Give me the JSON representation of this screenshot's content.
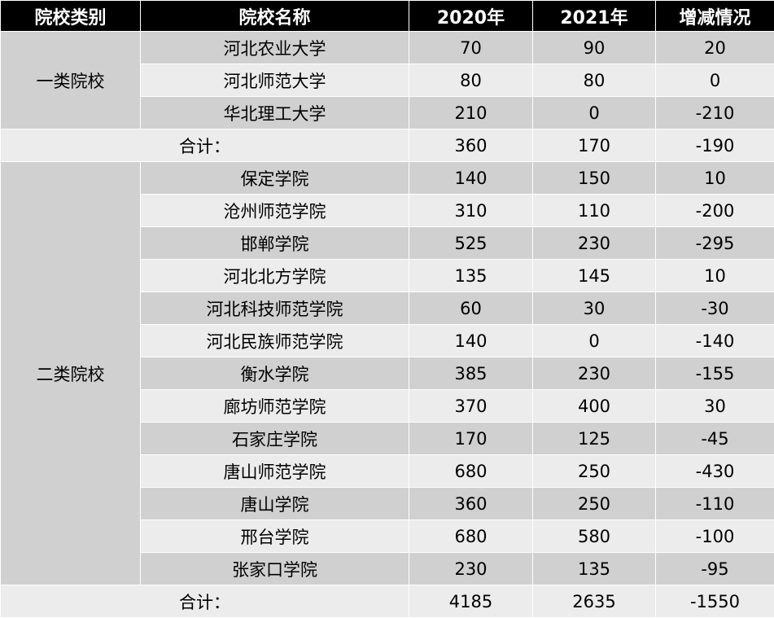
{
  "header": {
    "category": "院校类别",
    "name": "院校名称",
    "y2020": "2020年",
    "y2021": "2021年",
    "diff": "增减情况"
  },
  "groups": [
    {
      "category": "一类院校",
      "rows": [
        {
          "name": "河北农业大学",
          "y2020": "70",
          "y2021": "90",
          "diff": "20"
        },
        {
          "name": "河北师范大学",
          "y2020": "80",
          "y2021": "80",
          "diff": "0"
        },
        {
          "name": "华北理工大学",
          "y2020": "210",
          "y2021": "0",
          "diff": "-210"
        }
      ],
      "total": {
        "label": "合计：",
        "y2020": "360",
        "y2021": "170",
        "diff": "-190"
      }
    },
    {
      "category": "二类院校",
      "rows": [
        {
          "name": "保定学院",
          "y2020": "140",
          "y2021": "150",
          "diff": "10"
        },
        {
          "name": "沧州师范学院",
          "y2020": "310",
          "y2021": "110",
          "diff": "-200"
        },
        {
          "name": "邯郸学院",
          "y2020": "525",
          "y2021": "230",
          "diff": "-295"
        },
        {
          "name": "河北北方学院",
          "y2020": "135",
          "y2021": "145",
          "diff": "10"
        },
        {
          "name": "河北科技师范学院",
          "y2020": "60",
          "y2021": "30",
          "diff": "-30"
        },
        {
          "name": "河北民族师范学院",
          "y2020": "140",
          "y2021": "0",
          "diff": "-140"
        },
        {
          "name": "衡水学院",
          "y2020": "385",
          "y2021": "230",
          "diff": "-155"
        },
        {
          "name": "廊坊师范学院",
          "y2020": "370",
          "y2021": "400",
          "diff": "30"
        },
        {
          "name": "石家庄学院",
          "y2020": "170",
          "y2021": "125",
          "diff": "-45"
        },
        {
          "name": "唐山师范学院",
          "y2020": "680",
          "y2021": "250",
          "diff": "-430"
        },
        {
          "name": "唐山学院",
          "y2020": "360",
          "y2021": "250",
          "diff": "-110"
        },
        {
          "name": "邢台学院",
          "y2020": "680",
          "y2021": "580",
          "diff": "-100"
        },
        {
          "name": "张家口学院",
          "y2020": "230",
          "y2021": "135",
          "diff": "-95"
        }
      ],
      "total": {
        "label": "合计：",
        "y2020": "4185",
        "y2021": "2635",
        "diff": "-1550"
      }
    }
  ]
}
